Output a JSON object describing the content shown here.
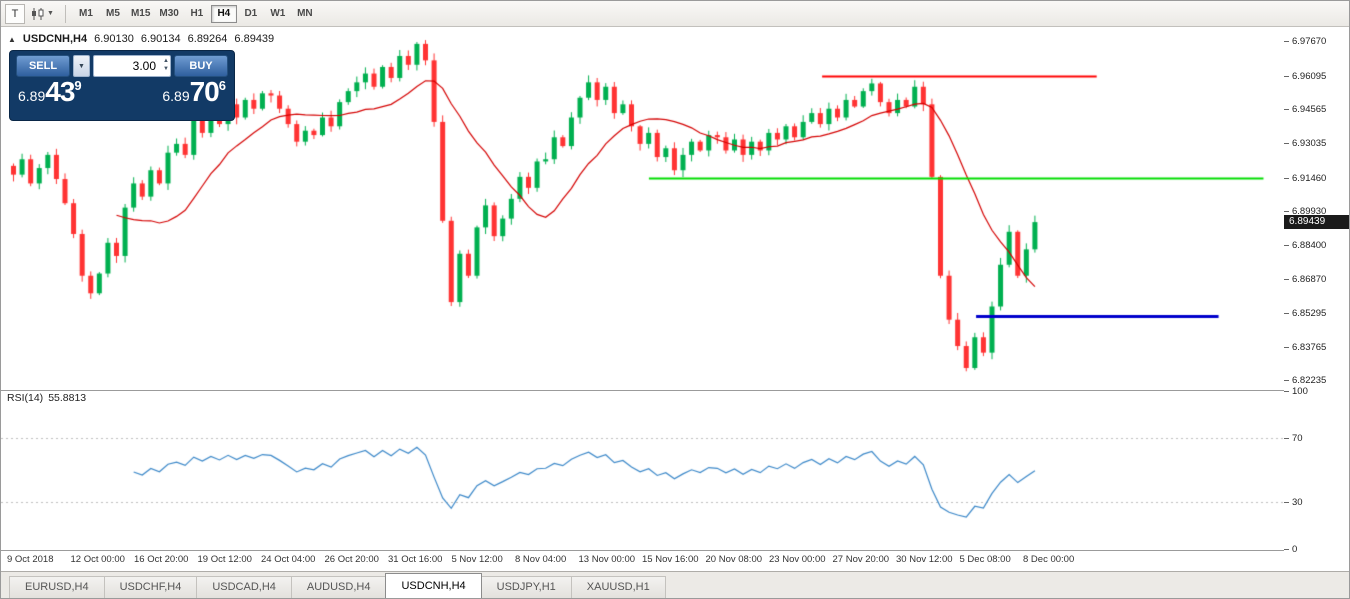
{
  "toolbar": {
    "window_button": "T",
    "chart_type_icon": "candlestick-chart-icon",
    "timeframes": [
      "M1",
      "M5",
      "M15",
      "M30",
      "H1",
      "H4",
      "D1",
      "W1",
      "MN"
    ],
    "active_timeframe": "H4"
  },
  "chart_header": {
    "collapse": "▲",
    "symbol": "USDCNH,H4",
    "open": "6.90130",
    "high": "6.90134",
    "low": "6.89264",
    "close": "6.89439"
  },
  "trade_panel": {
    "sell_label": "SELL",
    "buy_label": "BUY",
    "volume": "3.00",
    "sell_price": {
      "prefix": "6.89",
      "big": "43",
      "sup": "9"
    },
    "buy_price": {
      "prefix": "6.89",
      "big": "70",
      "sup": "6"
    }
  },
  "price_axis": {
    "labels": [
      "6.97670",
      "6.96095",
      "6.94565",
      "6.93035",
      "6.91460",
      "6.89930",
      "6.88400",
      "6.86870",
      "6.85295",
      "6.83765",
      "6.82235"
    ],
    "current": "6.89439"
  },
  "rsi": {
    "label": "RSI(14)",
    "value": "55.8813",
    "axis": [
      "100",
      "70",
      "30",
      "0"
    ],
    "levels": [
      70,
      30
    ]
  },
  "dates": [
    "9 Oct 2018",
    "12 Oct 00:00",
    "16 Oct 20:00",
    "19 Oct 12:00",
    "24 Oct 04:00",
    "26 Oct 20:00",
    "31 Oct 16:00",
    "5 Nov 12:00",
    "8 Nov 04:00",
    "13 Nov 00:00",
    "15 Nov 16:00",
    "20 Nov 08:00",
    "23 Nov 00:00",
    "27 Nov 20:00",
    "30 Nov 12:00",
    "5 Dec 08:00",
    "8 Dec 00:00"
  ],
  "tabs": [
    "EURUSD,H4",
    "USDCHF,H4",
    "USDCAD,H4",
    "AUDUSD,H4",
    "USDCNH,H4",
    "USDJPY,H1",
    "XAUUSD,H1"
  ],
  "active_tab": "USDCNH,H4",
  "chart_data": {
    "type": "candlestick",
    "symbol": "USDCNH",
    "timeframe": "H4",
    "title": "USDCNH,H4",
    "price_range": [
      6.818,
      6.98
    ],
    "ma_period": 13,
    "rsi_period": 14,
    "closes": [
      6.916,
      6.923,
      6.912,
      6.919,
      6.925,
      6.914,
      6.903,
      6.889,
      6.87,
      6.862,
      6.871,
      6.885,
      6.879,
      6.901,
      6.912,
      6.906,
      6.918,
      6.912,
      6.926,
      6.93,
      6.925,
      6.941,
      6.935,
      6.944,
      6.939,
      6.948,
      6.942,
      6.95,
      6.946,
      6.953,
      6.952,
      6.946,
      6.939,
      6.931,
      6.936,
      6.934,
      6.942,
      6.938,
      6.949,
      6.954,
      6.958,
      6.962,
      6.956,
      6.965,
      6.96,
      6.97,
      6.966,
      6.9755,
      6.968,
      6.94,
      6.895,
      6.858,
      6.88,
      6.87,
      6.892,
      6.902,
      6.888,
      6.896,
      6.905,
      6.915,
      6.91,
      6.922,
      6.923,
      6.933,
      6.929,
      6.942,
      6.951,
      6.958,
      6.95,
      6.956,
      6.944,
      6.948,
      6.938,
      6.93,
      6.935,
      6.924,
      6.928,
      6.918,
      6.925,
      6.931,
      6.927,
      6.934,
      6.933,
      6.927,
      6.932,
      6.925,
      6.931,
      6.927,
      6.935,
      6.932,
      6.938,
      6.933,
      6.94,
      6.944,
      6.939,
      6.946,
      6.942,
      6.95,
      6.947,
      6.954,
      6.9575,
      6.949,
      6.944,
      6.95,
      6.947,
      6.956,
      6.948,
      6.915,
      6.87,
      6.85,
      6.838,
      6.828,
      6.842,
      6.835,
      6.856,
      6.875,
      6.89,
      6.87,
      6.882,
      6.8944
    ],
    "hlines": [
      {
        "name": "resistance-line",
        "price": 6.961,
        "x0": 0.64,
        "x1": 0.854,
        "color": "#ff0000",
        "width": 2
      },
      {
        "name": "mid-level-line",
        "price": 6.9146,
        "x0": 0.505,
        "x1": 0.984,
        "color": "#00dd00",
        "width": 2
      },
      {
        "name": "support-line",
        "price": 6.8515,
        "x0": 0.76,
        "x1": 0.949,
        "color": "#0000cc",
        "width": 3
      }
    ],
    "colors": {
      "bull": "#00b050",
      "bear": "#ff3333",
      "ma": "#d40000",
      "rsi": "#3a87c8",
      "level_dash": "#bdbdbd"
    }
  }
}
